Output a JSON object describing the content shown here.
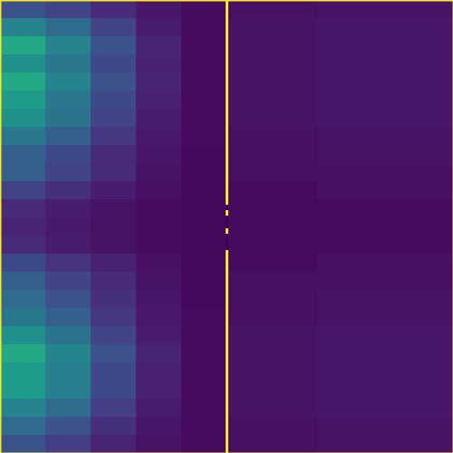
{
  "chart_data": {
    "type": "heatmap",
    "tick_labels": false,
    "xlim": [
      0,
      500
    ],
    "ylim": [
      500,
      0
    ],
    "color_scale": "viridis",
    "clim": [
      0,
      1
    ],
    "x_bins": [
      [
        0,
        50
      ],
      [
        50,
        100
      ],
      [
        100,
        150
      ],
      [
        150,
        200
      ],
      [
        200,
        249
      ],
      [
        252,
        350
      ],
      [
        350,
        500
      ]
    ],
    "y_bins": [
      [
        0,
        20
      ],
      [
        20,
        40
      ],
      [
        40,
        60
      ],
      [
        60,
        80
      ],
      [
        80,
        100
      ],
      [
        100,
        120
      ],
      [
        120,
        140
      ],
      [
        140,
        160
      ],
      [
        160,
        180
      ],
      [
        180,
        200
      ],
      [
        200,
        220
      ],
      [
        220,
        240
      ],
      [
        240,
        260
      ],
      [
        260,
        280
      ],
      [
        280,
        300
      ],
      [
        300,
        320
      ],
      [
        320,
        340
      ],
      [
        340,
        360
      ],
      [
        360,
        380
      ],
      [
        380,
        400
      ],
      [
        400,
        420
      ],
      [
        420,
        440
      ],
      [
        440,
        460
      ],
      [
        460,
        480
      ],
      [
        480,
        500
      ]
    ],
    "cells": [
      [
        0.25,
        0.2,
        0.12,
        0.06,
        0.03,
        0.04,
        0.05
      ],
      [
        0.45,
        0.35,
        0.2,
        0.08,
        0.03,
        0.05,
        0.06
      ],
      [
        0.6,
        0.45,
        0.25,
        0.1,
        0.03,
        0.05,
        0.06
      ],
      [
        0.5,
        0.4,
        0.22,
        0.09,
        0.03,
        0.05,
        0.06
      ],
      [
        0.6,
        0.45,
        0.25,
        0.1,
        0.03,
        0.05,
        0.06
      ],
      [
        0.55,
        0.4,
        0.22,
        0.09,
        0.03,
        0.05,
        0.06
      ],
      [
        0.5,
        0.38,
        0.2,
        0.08,
        0.03,
        0.05,
        0.06
      ],
      [
        0.4,
        0.3,
        0.16,
        0.07,
        0.03,
        0.04,
        0.05
      ],
      [
        0.3,
        0.22,
        0.12,
        0.06,
        0.02,
        0.04,
        0.05
      ],
      [
        0.3,
        0.2,
        0.12,
        0.05,
        0.02,
        0.04,
        0.04
      ],
      [
        0.2,
        0.14,
        0.08,
        0.04,
        0.02,
        0.03,
        0.04
      ],
      [
        0.12,
        0.08,
        0.05,
        0.03,
        0.02,
        0.03,
        0.03
      ],
      [
        0.1,
        0.07,
        0.05,
        0.03,
        0.02,
        0.03,
        0.03
      ],
      [
        0.12,
        0.08,
        0.05,
        0.03,
        0.02,
        0.03,
        0.03
      ],
      [
        0.22,
        0.15,
        0.09,
        0.04,
        0.02,
        0.03,
        0.04
      ],
      [
        0.3,
        0.2,
        0.12,
        0.05,
        0.02,
        0.04,
        0.04
      ],
      [
        0.35,
        0.25,
        0.14,
        0.06,
        0.02,
        0.04,
        0.05
      ],
      [
        0.4,
        0.3,
        0.16,
        0.07,
        0.03,
        0.04,
        0.05
      ],
      [
        0.5,
        0.38,
        0.2,
        0.08,
        0.03,
        0.05,
        0.06
      ],
      [
        0.6,
        0.45,
        0.25,
        0.1,
        0.03,
        0.05,
        0.06
      ],
      [
        0.55,
        0.42,
        0.22,
        0.09,
        0.03,
        0.05,
        0.06
      ],
      [
        0.55,
        0.42,
        0.22,
        0.09,
        0.03,
        0.05,
        0.06
      ],
      [
        0.45,
        0.35,
        0.18,
        0.08,
        0.03,
        0.05,
        0.06
      ],
      [
        0.35,
        0.25,
        0.14,
        0.06,
        0.03,
        0.04,
        0.05
      ],
      [
        0.25,
        0.18,
        0.1,
        0.05,
        0.03,
        0.04,
        0.05
      ]
    ],
    "line": {
      "x": [
        249,
        252
      ],
      "value": 1,
      "segments": [
        [
          0,
          226
        ],
        [
          232,
          238
        ],
        [
          252,
          258
        ],
        [
          276,
          500
        ]
      ]
    }
  }
}
